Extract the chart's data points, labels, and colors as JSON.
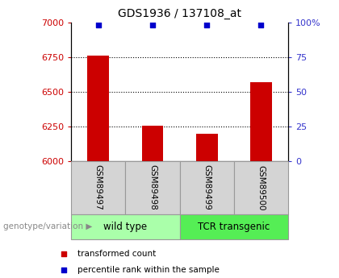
{
  "title": "GDS1936 / 137108_at",
  "samples": [
    "GSM89497",
    "GSM89498",
    "GSM89499",
    "GSM89500"
  ],
  "bar_values": [
    6760,
    6255,
    6195,
    6570
  ],
  "bar_baseline": 6000,
  "percentile_values": [
    98,
    98,
    98,
    98
  ],
  "bar_color": "#cc0000",
  "dot_color": "#0000cc",
  "ylim_left": [
    6000,
    7000
  ],
  "ylim_right": [
    0,
    100
  ],
  "yticks_left": [
    6000,
    6250,
    6500,
    6750,
    7000
  ],
  "yticks_right": [
    0,
    25,
    50,
    75,
    100
  ],
  "ytick_labels_right": [
    "0",
    "25",
    "50",
    "75",
    "100%"
  ],
  "grid_values": [
    6250,
    6500,
    6750
  ],
  "groups": [
    {
      "label": "wild type",
      "indices": [
        0,
        1
      ],
      "color": "#aaffaa"
    },
    {
      "label": "TCR transgenic",
      "indices": [
        2,
        3
      ],
      "color": "#55ee55"
    }
  ],
  "group_label_prefix": "genotype/variation",
  "legend_bar_label": "transformed count",
  "legend_dot_label": "percentile rank within the sample",
  "title_fontsize": 10,
  "axis_label_color_left": "#cc0000",
  "axis_label_color_right": "#3333cc",
  "sample_box_color": "#d4d4d4",
  "sample_box_edge": "#999999",
  "bar_width": 0.4
}
